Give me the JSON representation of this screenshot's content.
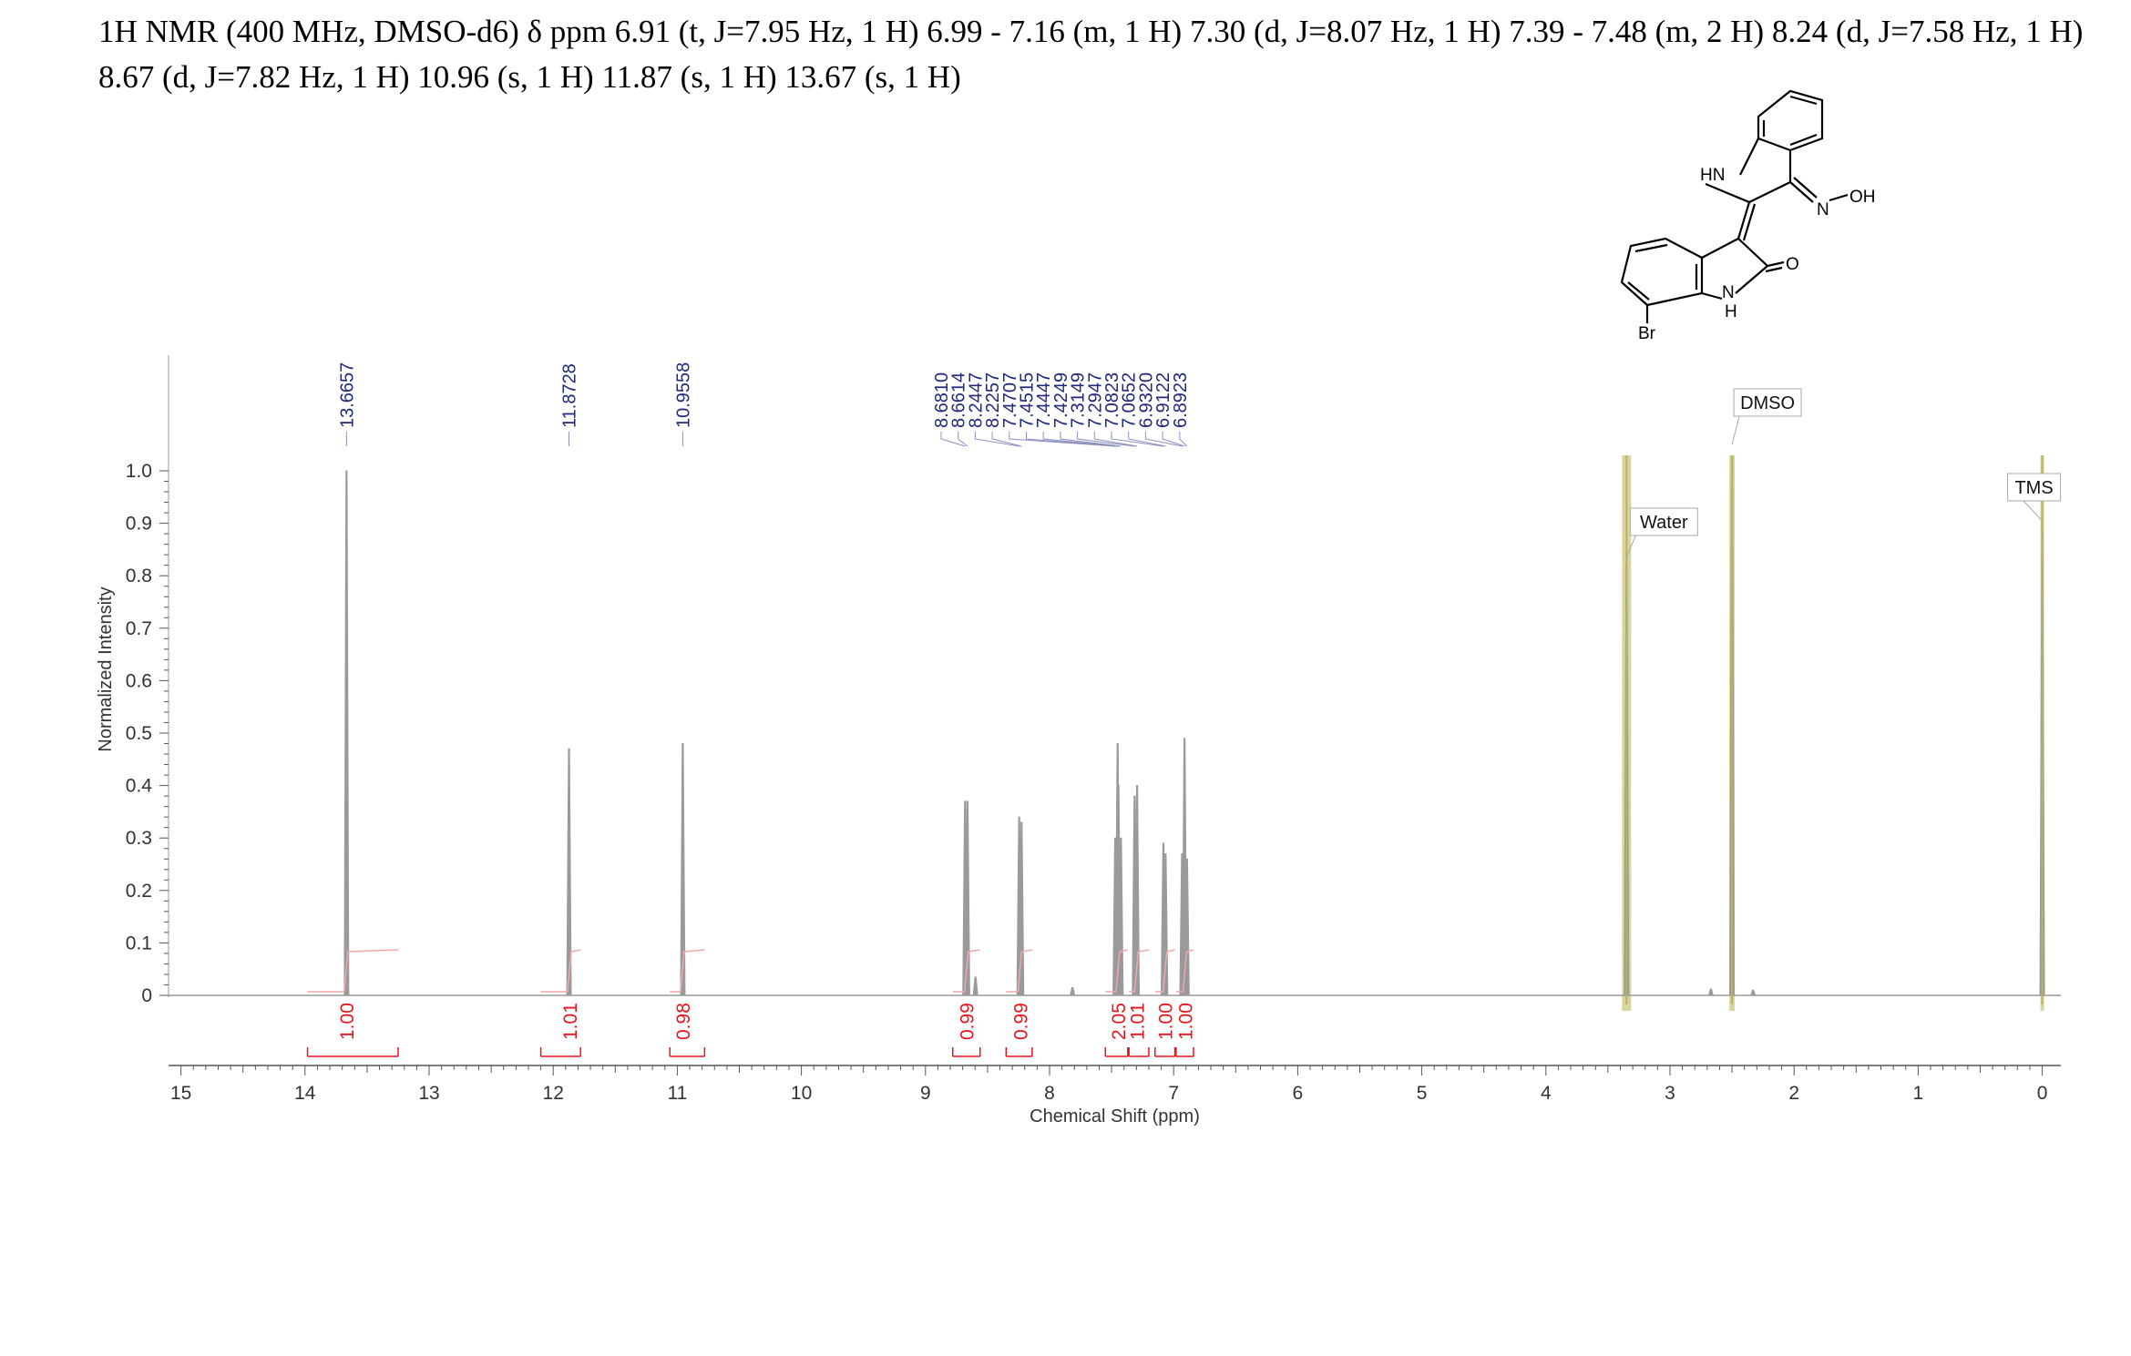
{
  "header": {
    "line1": "1H NMR (400 MHz, DMSO-d6) δ ppm 6.91 (t, J=7.95 Hz, 1 H) 6.99 - 7.16 (m, 1 H) 7.30 (d, J=8.07 Hz, 1 H) 7.39 - 7.48 (m, 2 H) 8.24 (d, J=7.58 Hz, 1 H)",
    "line2": "8.67 (d, J=7.82 Hz, 1 H) 10.96 (s, 1 H) 11.87 (s, 1 H) 13.67 (s, 1 H)"
  },
  "structure": {
    "labels": {
      "hn": "HN",
      "n_oh": "N",
      "oh": "OH",
      "o": "O",
      "n": "N",
      "h": "H",
      "br": "Br"
    }
  },
  "chart_data": {
    "type": "line",
    "xlabel": "Chemical Shift (ppm)",
    "ylabel": "Normalized Intensity",
    "xlim": [
      15.1,
      -0.15
    ],
    "ylim": [
      -0.03,
      1.04
    ],
    "x_ticks": [
      15,
      14,
      13,
      12,
      11,
      10,
      9,
      8,
      7,
      6,
      5,
      4,
      3,
      2,
      1,
      0
    ],
    "y_ticks": [
      {
        "v": 0,
        "label": "0"
      },
      {
        "v": 0.1,
        "label": "0.1"
      },
      {
        "v": 0.2,
        "label": "0.2"
      },
      {
        "v": 0.3,
        "label": "0.3"
      },
      {
        "v": 0.4,
        "label": "0.4"
      },
      {
        "v": 0.5,
        "label": "0.5"
      },
      {
        "v": 0.6,
        "label": "0.6"
      },
      {
        "v": 0.7,
        "label": "0.7"
      },
      {
        "v": 0.8,
        "label": "0.8"
      },
      {
        "v": 0.9,
        "label": "0.9"
      },
      {
        "v": 1.0,
        "label": "1.0"
      }
    ],
    "peaks": [
      {
        "ppm": 13.6657,
        "h": 1.0,
        "w": 0.006
      },
      {
        "ppm": 11.8728,
        "h": 0.47,
        "w": 0.006
      },
      {
        "ppm": 10.9558,
        "h": 0.48,
        "w": 0.006
      },
      {
        "ppm": 8.681,
        "h": 0.37,
        "w": 0.006
      },
      {
        "ppm": 8.6614,
        "h": 0.37,
        "w": 0.006
      },
      {
        "ppm": 8.597,
        "h": 0.035,
        "w": 0.01
      },
      {
        "ppm": 8.2447,
        "h": 0.34,
        "w": 0.006
      },
      {
        "ppm": 8.2257,
        "h": 0.33,
        "w": 0.006
      },
      {
        "ppm": 7.815,
        "h": 0.015,
        "w": 0.012
      },
      {
        "ppm": 7.4707,
        "h": 0.3,
        "w": 0.006
      },
      {
        "ppm": 7.4515,
        "h": 0.48,
        "w": 0.006
      },
      {
        "ppm": 7.4447,
        "h": 0.4,
        "w": 0.006
      },
      {
        "ppm": 7.4249,
        "h": 0.3,
        "w": 0.006
      },
      {
        "ppm": 7.3149,
        "h": 0.38,
        "w": 0.006
      },
      {
        "ppm": 7.2947,
        "h": 0.4,
        "w": 0.006
      },
      {
        "ppm": 7.0823,
        "h": 0.29,
        "w": 0.006
      },
      {
        "ppm": 7.0652,
        "h": 0.27,
        "w": 0.006
      },
      {
        "ppm": 6.932,
        "h": 0.27,
        "w": 0.006
      },
      {
        "ppm": 6.9122,
        "h": 0.49,
        "w": 0.006
      },
      {
        "ppm": 6.8923,
        "h": 0.26,
        "w": 0.006
      },
      {
        "ppm": 3.35,
        "h": 0.82,
        "w": 0.018
      },
      {
        "ppm": 2.67,
        "h": 0.012,
        "w": 0.01
      },
      {
        "ppm": 2.5,
        "h": 1.02,
        "w": 0.007
      },
      {
        "ppm": 2.33,
        "h": 0.01,
        "w": 0.01
      },
      {
        "ppm": 0.0,
        "h": 0.89,
        "w": 0.005
      }
    ],
    "peak_labels": [
      {
        "ppm": 13.6657,
        "label": "13.6657"
      },
      {
        "ppm": 11.8728,
        "label": "11.8728"
      },
      {
        "ppm": 10.9558,
        "label": "10.9558"
      },
      {
        "ppm": 8.681,
        "label": "8.6810"
      },
      {
        "ppm": 8.6614,
        "label": "8.6614"
      },
      {
        "ppm": 8.2447,
        "label": "8.2447"
      },
      {
        "ppm": 8.2257,
        "label": "8.2257"
      },
      {
        "ppm": 7.4707,
        "label": "7.4707"
      },
      {
        "ppm": 7.4515,
        "label": "7.4515"
      },
      {
        "ppm": 7.4447,
        "label": "7.4447"
      },
      {
        "ppm": 7.4249,
        "label": "7.4249"
      },
      {
        "ppm": 7.3149,
        "label": "7.3149"
      },
      {
        "ppm": 7.2947,
        "label": "7.2947"
      },
      {
        "ppm": 7.0823,
        "label": "7.0823"
      },
      {
        "ppm": 7.0652,
        "label": "7.0652"
      },
      {
        "ppm": 6.932,
        "label": "6.9320"
      },
      {
        "ppm": 6.9122,
        "label": "6.9122"
      },
      {
        "ppm": 6.8923,
        "label": "6.8923"
      }
    ],
    "integrals": [
      {
        "from": 13.98,
        "to": 13.25,
        "center": 13.67,
        "label": "1.00"
      },
      {
        "from": 12.1,
        "to": 11.78,
        "center": 11.87,
        "label": "1.01"
      },
      {
        "from": 11.06,
        "to": 10.78,
        "center": 10.96,
        "label": "0.98"
      },
      {
        "from": 8.78,
        "to": 8.56,
        "center": 8.67,
        "label": "0.99"
      },
      {
        "from": 8.35,
        "to": 8.14,
        "center": 8.24,
        "label": "0.99"
      },
      {
        "from": 7.55,
        "to": 7.37,
        "center": 7.45,
        "label": "2.05"
      },
      {
        "from": 7.36,
        "to": 7.2,
        "center": 7.3,
        "label": "1.01"
      },
      {
        "from": 7.15,
        "to": 6.99,
        "center": 7.07,
        "label": "1.00"
      },
      {
        "from": 6.98,
        "to": 6.84,
        "center": 6.91,
        "label": "1.00"
      }
    ],
    "solvent_regions": [
      {
        "ppm": 3.35,
        "label": "Water"
      },
      {
        "ppm": 2.5,
        "label": "DMSO"
      },
      {
        "ppm": 0.0,
        "label": "TMS"
      }
    ],
    "colors": {
      "spectrum": "#9a9a9a",
      "peak_label": "#1f2a7a",
      "integral": "#e8141c",
      "integral_curve": "#f0a8a8",
      "solvent_band": "#d8d6a0",
      "solvent_line": "#b8b45a",
      "axis": "#555555"
    }
  }
}
